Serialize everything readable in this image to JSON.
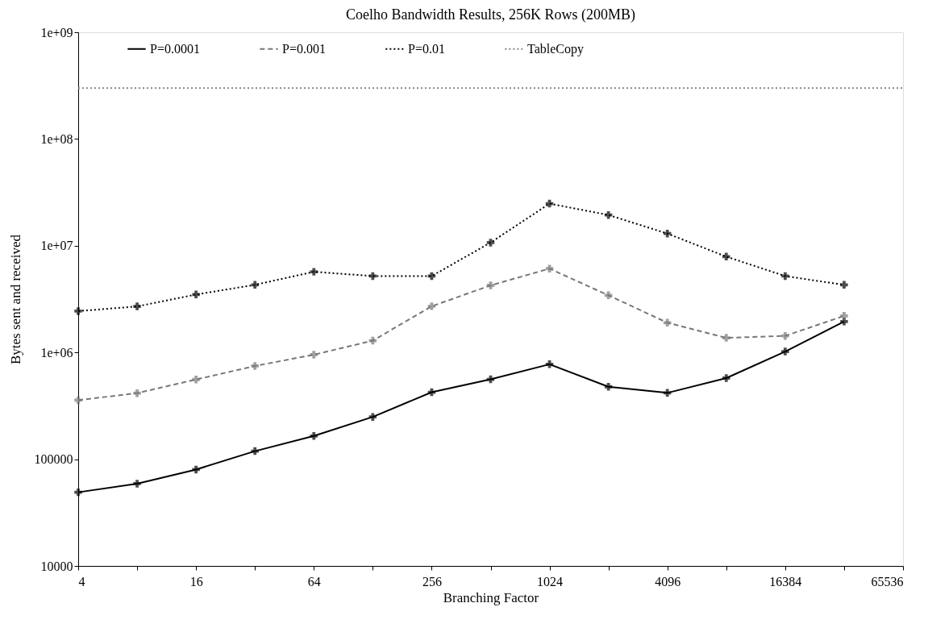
{
  "chart_data": {
    "type": "line",
    "title": "Coelho Bandwidth Results, 256K Rows (200MB)",
    "xlabel": "Branching Factor",
    "ylabel": "Bytes sent and received",
    "x": [
      4,
      8,
      16,
      32,
      64,
      128,
      256,
      512,
      1024,
      2048,
      4096,
      8192,
      16384,
      32768
    ],
    "series": [
      {
        "name": "P=0.0001",
        "color": "#000000",
        "line_style": "solid",
        "marker": "cross",
        "values": [
          49000,
          59000,
          80000,
          119000,
          165000,
          249000,
          424000,
          560000,
          775000,
          477000,
          418000,
          575000,
          1020000,
          1950000
        ]
      },
      {
        "name": "P=0.001",
        "color": "#777777",
        "line_style": "dashed",
        "marker": "cross",
        "values": [
          357000,
          416000,
          558000,
          747000,
          953000,
          1290000,
          2710000,
          4250000,
          6100000,
          3430000,
          1900000,
          1370000,
          1430000,
          2200000
        ]
      },
      {
        "name": "P=0.01",
        "color": "#000000",
        "line_style": "dotted",
        "marker": "cross",
        "values": [
          2440000,
          2700000,
          3490000,
          4300000,
          5700000,
          5200000,
          5200000,
          10700000,
          24800000,
          19400000,
          13000000,
          7900000,
          5200000,
          4300000
        ]
      },
      {
        "name": "TableCopy",
        "color": "#888888",
        "line_style": "dotted",
        "marker": "none",
        "x": [
          4,
          65536
        ],
        "values": [
          300000000,
          300000000
        ]
      }
    ],
    "log": "xy",
    "xlim": [
      4,
      65536
    ],
    "ylim": [
      10000,
      1000000000
    ],
    "xticks": [
      4,
      {
        "value": 8,
        "label": null
      },
      16,
      {
        "value": 32,
        "label": null
      },
      64,
      {
        "value": 128,
        "label": null
      },
      256,
      {
        "value": 512,
        "label": null
      },
      1024,
      {
        "value": 2048,
        "label": null
      },
      4096,
      {
        "value": 8192,
        "label": null
      },
      16384,
      {
        "value": 32768,
        "label": null
      },
      65536
    ],
    "yticks": [
      10000,
      100000,
      {
        "value": 1000000,
        "label": "1e+06"
      },
      {
        "value": 10000000,
        "label": "1e+07"
      },
      {
        "value": 100000000,
        "label": "1e+08"
      },
      {
        "value": 1000000000,
        "label": "1e+09"
      }
    ],
    "grid": false,
    "legend": "top"
  }
}
